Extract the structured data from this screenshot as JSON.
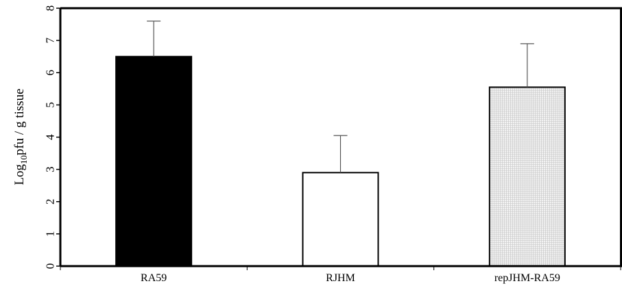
{
  "chart_data": {
    "type": "bar",
    "categories": [
      "RA59",
      "RJHM",
      "repJHM-RA59"
    ],
    "series": [
      {
        "values": [
          6.5,
          2.9,
          5.55
        ],
        "errors": [
          1.1,
          1.15,
          1.35
        ],
        "fills": [
          "solid-black",
          "white",
          "light-grid"
        ]
      }
    ],
    "ylabel_main": "Log",
    "ylabel_sub": "10",
    "ylabel_rest": "pfu / g tissue",
    "ylim": [
      0,
      8
    ],
    "yticks": [
      "0",
      "1",
      "2",
      "3",
      "4",
      "5",
      "6",
      "7",
      "8"
    ],
    "grid": false,
    "legend": "none"
  }
}
